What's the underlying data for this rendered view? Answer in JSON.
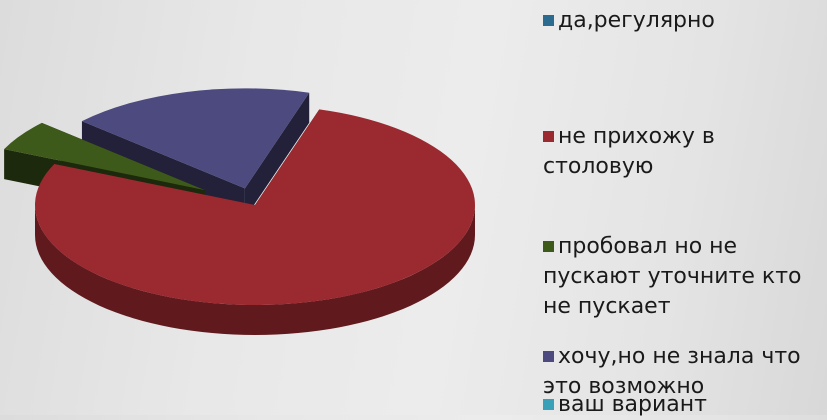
{
  "chart_data": {
    "type": "pie",
    "title": "",
    "labels": [
      "да,регулярно",
      "не прихожу в столовую",
      "пробовал но не пускают  уточните кто не пускает",
      "хочу,но не знала что это возможно",
      "ваш вариант"
    ],
    "values": [
      0,
      77,
      5,
      18,
      0
    ],
    "colors": [
      "#2a6b8f",
      "#9b2a30",
      "#3e5a1a",
      "#4c4a7e",
      "#3aa0b8"
    ],
    "legend_position": "right",
    "exploded_label": "не прихожу в столовую",
    "style": "3d"
  }
}
